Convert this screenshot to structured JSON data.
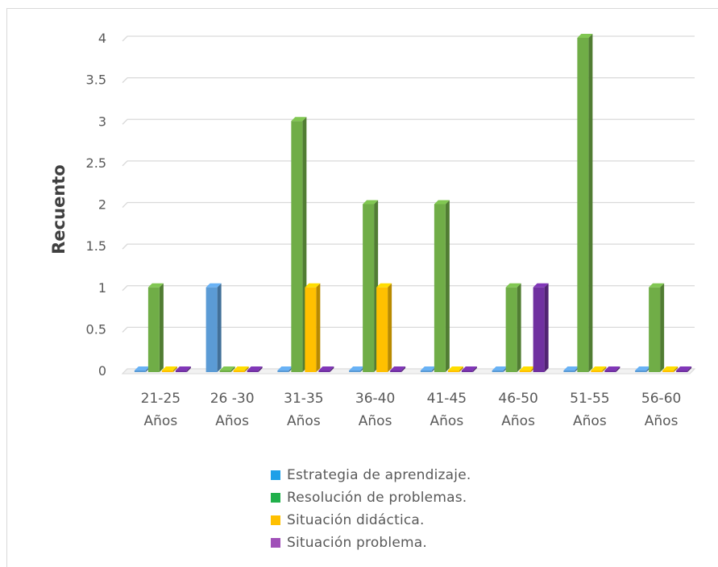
{
  "chart_data": {
    "type": "bar",
    "ylabel": "Recuento",
    "ylim": [
      0,
      4
    ],
    "yticks": [
      "0",
      "0.5",
      "1",
      "1.5",
      "2",
      "2.5",
      "3",
      "3.5",
      "4"
    ],
    "categories": [
      [
        "21-25",
        "Años"
      ],
      [
        "26 -30",
        "Años"
      ],
      [
        "31-35",
        "Años"
      ],
      [
        "36-40",
        "Años"
      ],
      [
        "41-45",
        "Años"
      ],
      [
        "46-50",
        "Años"
      ],
      [
        "51-55",
        "Años"
      ],
      [
        "56-60",
        "Años"
      ]
    ],
    "series": [
      {
        "name": "Estrategia de aprendizaje.",
        "color": "#5b9bd5",
        "legend_color": "#1ea0e8",
        "values": [
          0,
          1,
          0,
          0,
          0,
          0,
          0,
          0
        ]
      },
      {
        "name": "Resolución de problemas.",
        "color": "#70ad47",
        "legend_color": "#21b04b",
        "values": [
          1,
          0,
          3,
          2,
          2,
          1,
          4,
          1
        ]
      },
      {
        "name": "Situación didáctica.",
        "color": "#ffc000",
        "legend_color": "#ffc000",
        "values": [
          0,
          0,
          1,
          1,
          0,
          0,
          0,
          0
        ]
      },
      {
        "name": "Situación problema.",
        "color": "#7030a0",
        "legend_color": "#a050b8",
        "values": [
          0,
          0,
          0,
          0,
          0,
          1,
          0,
          0
        ]
      }
    ],
    "grid": true,
    "legend_position": "bottom"
  }
}
